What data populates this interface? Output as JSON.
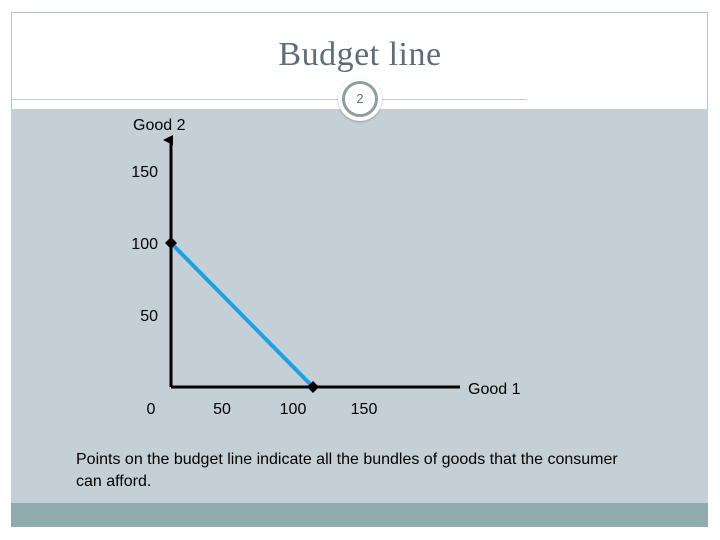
{
  "slide": {
    "title": "Budget line",
    "number": "2",
    "caption": "Points on the budget line indicate all the bundles of goods that the consumer can afford."
  },
  "colors": {
    "budget_line": "#1ca1e6",
    "axes": "#000000",
    "content_background": "#c5d0d6",
    "footer_band": "#8fabb0",
    "title_text": "#5d6e78"
  },
  "chart_data": {
    "type": "line",
    "title": "",
    "xlabel": "Good 1",
    "ylabel": "Good 2",
    "xlim": [
      0,
      150
    ],
    "ylim": [
      0,
      150
    ],
    "x_ticks": [
      "0",
      "50",
      "100",
      "150"
    ],
    "y_ticks": [
      "150",
      "100",
      "50"
    ],
    "grid": false,
    "legend": "none",
    "series": [
      {
        "x": [
          0,
          100
        ],
        "y": [
          100,
          0
        ]
      }
    ]
  }
}
